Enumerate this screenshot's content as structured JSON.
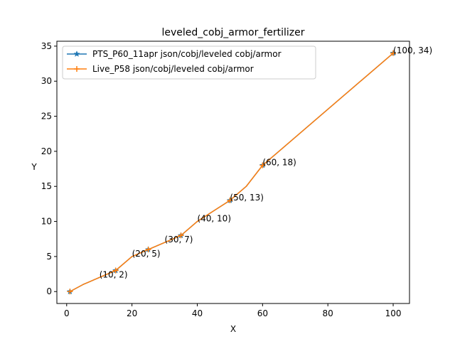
{
  "chart_data": {
    "type": "line",
    "title": "leveled_cobj_armor_fertilizer",
    "xlabel": "X",
    "ylabel": "Y",
    "xlim": [
      -3,
      105
    ],
    "ylim": [
      -1.7,
      35.7
    ],
    "xticks": [
      0,
      20,
      40,
      60,
      80,
      100
    ],
    "yticks": [
      0,
      5,
      10,
      15,
      20,
      25,
      30,
      35
    ],
    "grid": false,
    "legend_position": "top-left",
    "series": [
      {
        "name": "PTS_P60_11apr json/cobj/leveled cobj/armor",
        "color": "#1f77b4",
        "marker": "star",
        "x": [
          1,
          5,
          10,
          15,
          20,
          25,
          30,
          35,
          40,
          45,
          50,
          55,
          60,
          65,
          70,
          75,
          80,
          85,
          90,
          95,
          100
        ],
        "y": [
          0,
          1,
          2,
          3,
          5,
          6,
          7,
          8,
          10,
          11.5,
          13,
          15,
          18,
          20,
          22,
          24,
          26,
          28,
          30,
          32,
          34
        ]
      },
      {
        "name": "Live_P58 json/cobj/leveled cobj/armor",
        "color": "#ff7f0e",
        "marker": "plus",
        "x": [
          1,
          5,
          10,
          15,
          20,
          25,
          30,
          35,
          40,
          45,
          50,
          55,
          60,
          65,
          70,
          75,
          80,
          85,
          90,
          95,
          100
        ],
        "y": [
          0,
          1,
          2,
          3,
          5,
          6,
          7,
          8,
          10,
          11.5,
          13,
          15,
          18,
          20,
          22,
          24,
          26,
          28,
          30,
          32,
          34
        ]
      }
    ],
    "markers_at": [
      1,
      15,
      25,
      35,
      50,
      60,
      100
    ],
    "annotations": [
      {
        "x": 10,
        "y": 2,
        "text": "(10, 2)"
      },
      {
        "x": 20,
        "y": 5,
        "text": "(20, 5)"
      },
      {
        "x": 30,
        "y": 7,
        "text": "(30, 7)"
      },
      {
        "x": 40,
        "y": 10,
        "text": "(40, 10)"
      },
      {
        "x": 50,
        "y": 13,
        "text": "(50, 13)"
      },
      {
        "x": 60,
        "y": 18,
        "text": "(60, 18)"
      },
      {
        "x": 100,
        "y": 34,
        "text": "(100, 34)"
      }
    ]
  }
}
